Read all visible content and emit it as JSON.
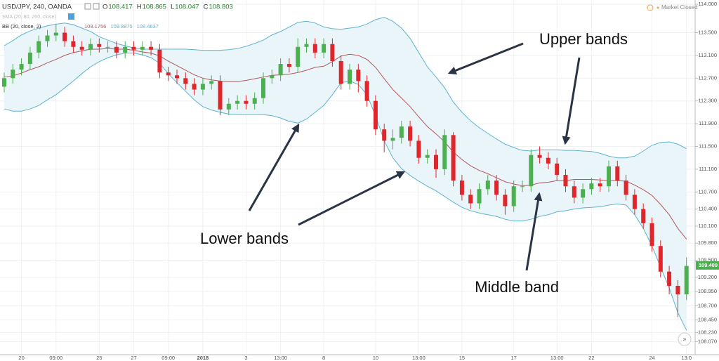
{
  "chart_data": {
    "type": "candlestick",
    "title": "USD/JPY, 240, OANDA",
    "ohlc_legend": [
      {
        "label": "O",
        "value": 108.417
      },
      {
        "label": "H",
        "value": 108.865
      },
      {
        "label": "L",
        "value": 108.047
      },
      {
        "label": "C",
        "value": 108.803
      }
    ],
    "indicators": [
      {
        "name": "SMA (20, 80, 200, close)"
      },
      {
        "name": "BB (20, close, 2)",
        "values": [
          109.1756,
          109.8875,
          108.4637
        ]
      }
    ],
    "status": "Market Closed",
    "last_price": 109.409,
    "annotations": [
      "Upper bands",
      "Lower bands",
      "Middle band"
    ],
    "categories": [
      null,
      null,
      "20",
      null,
      null,
      null,
      "09:00",
      null,
      null,
      null,
      null,
      "25",
      null,
      null,
      null,
      "27",
      null,
      null,
      null,
      "09:00",
      null,
      null,
      null,
      "2018",
      null,
      null,
      null,
      null,
      "3",
      null,
      null,
      null,
      "13:00",
      null,
      null,
      null,
      null,
      "8",
      null,
      null,
      null,
      null,
      null,
      "10",
      null,
      null,
      null,
      null,
      "13:00",
      null,
      null,
      null,
      null,
      "15",
      null,
      null,
      null,
      null,
      null,
      "17",
      null,
      null,
      null,
      null,
      "13:00",
      null,
      null,
      null,
      "22",
      null,
      null,
      null,
      null,
      null,
      null,
      "24",
      null,
      null,
      null,
      "13:0"
    ],
    "open": [
      112.55,
      112.7,
      112.85,
      112.95,
      113.15,
      113.35,
      113.45,
      113.5,
      113.35,
      113.25,
      113.2,
      113.3,
      113.25,
      113.25,
      113.15,
      113.25,
      113.2,
      113.25,
      113.2,
      112.8,
      112.75,
      112.7,
      112.6,
      112.5,
      112.6,
      112.65,
      112.15,
      112.25,
      112.3,
      112.25,
      112.35,
      112.7,
      112.75,
      112.95,
      112.9,
      113.25,
      113.3,
      113.15,
      113.3,
      113.0,
      112.6,
      112.85,
      112.65,
      112.3,
      111.8,
      111.6,
      111.65,
      111.85,
      111.6,
      111.3,
      111.35,
      111.1,
      111.7,
      110.9,
      110.65,
      110.5,
      110.75,
      110.9,
      110.65,
      110.45,
      110.8,
      110.8,
      111.35,
      111.3,
      111.2,
      111.0,
      110.8,
      110.6,
      110.75,
      110.85,
      110.8,
      111.15,
      110.9,
      110.65,
      110.4,
      110.15,
      109.75,
      109.3,
      109.05,
      108.9
    ],
    "high": [
      112.8,
      112.95,
      113.05,
      113.25,
      113.45,
      113.55,
      113.65,
      113.6,
      113.45,
      113.35,
      113.4,
      113.4,
      113.35,
      113.35,
      113.35,
      113.35,
      113.35,
      113.35,
      113.3,
      112.9,
      112.85,
      112.8,
      112.7,
      112.7,
      112.75,
      112.75,
      112.35,
      112.4,
      112.4,
      112.45,
      112.8,
      112.85,
      113.05,
      113.05,
      113.4,
      113.4,
      113.4,
      113.4,
      113.4,
      113.1,
      112.95,
      112.95,
      112.75,
      112.4,
      111.9,
      111.8,
      111.95,
      111.95,
      111.7,
      111.45,
      111.45,
      111.8,
      111.75,
      111.0,
      110.75,
      110.85,
      111.0,
      111.0,
      110.75,
      110.9,
      110.9,
      111.45,
      111.5,
      111.4,
      111.3,
      111.1,
      110.9,
      110.85,
      110.95,
      110.95,
      111.25,
      111.25,
      111.0,
      110.75,
      110.5,
      110.25,
      109.85,
      109.4,
      109.15,
      109.55
    ],
    "low": [
      112.45,
      112.6,
      112.75,
      112.85,
      113.05,
      113.25,
      113.35,
      113.25,
      113.15,
      113.1,
      113.1,
      113.15,
      113.15,
      113.05,
      113.05,
      113.1,
      113.1,
      113.1,
      112.7,
      112.65,
      112.6,
      112.5,
      112.4,
      112.4,
      112.5,
      112.05,
      112.05,
      112.15,
      112.15,
      112.15,
      112.25,
      112.6,
      112.65,
      112.8,
      112.8,
      113.15,
      113.05,
      113.05,
      112.9,
      112.5,
      112.5,
      112.45,
      112.2,
      111.7,
      111.4,
      111.45,
      111.55,
      111.5,
      111.2,
      111.2,
      110.95,
      111.0,
      110.8,
      110.55,
      110.4,
      110.4,
      110.65,
      110.55,
      110.3,
      110.35,
      110.7,
      110.7,
      111.2,
      111.1,
      110.9,
      110.7,
      110.5,
      110.5,
      110.65,
      110.7,
      110.7,
      110.8,
      110.55,
      110.3,
      110.05,
      109.65,
      109.2,
      108.9,
      108.5,
      108.8
    ],
    "close": [
      112.7,
      112.85,
      112.95,
      113.15,
      113.35,
      113.45,
      113.5,
      113.35,
      113.25,
      113.2,
      113.3,
      113.25,
      113.25,
      113.15,
      113.25,
      113.2,
      113.25,
      113.2,
      112.8,
      112.75,
      112.7,
      112.6,
      112.5,
      112.6,
      112.65,
      112.15,
      112.25,
      112.3,
      112.25,
      112.35,
      112.7,
      112.75,
      112.95,
      112.9,
      113.25,
      113.3,
      113.15,
      113.3,
      113.0,
      112.6,
      112.85,
      112.65,
      112.3,
      111.8,
      111.6,
      111.65,
      111.85,
      111.6,
      111.3,
      111.35,
      111.1,
      111.7,
      110.9,
      110.65,
      110.5,
      110.75,
      110.9,
      110.65,
      110.45,
      110.8,
      110.8,
      111.35,
      111.3,
      111.2,
      111.0,
      110.8,
      110.6,
      110.75,
      110.85,
      110.8,
      111.15,
      110.9,
      110.65,
      110.4,
      110.15,
      109.75,
      109.3,
      109.05,
      108.9,
      109.4
    ],
    "upper": [
      113.27,
      113.36,
      113.46,
      113.53,
      113.58,
      113.62,
      113.65,
      113.67,
      113.64,
      113.58,
      113.52,
      113.43,
      113.37,
      113.31,
      113.27,
      113.23,
      113.21,
      113.21,
      113.21,
      113.21,
      113.21,
      113.21,
      113.2,
      113.19,
      113.19,
      113.19,
      113.2,
      113.22,
      113.26,
      113.31,
      113.37,
      113.46,
      113.52,
      113.6,
      113.68,
      113.7,
      113.67,
      113.6,
      113.57,
      113.56,
      113.58,
      113.6,
      113.65,
      113.73,
      113.77,
      113.7,
      113.58,
      113.4,
      113.15,
      112.9,
      112.72,
      112.53,
      112.28,
      112.1,
      111.95,
      111.83,
      111.73,
      111.63,
      111.54,
      111.48,
      111.43,
      111.42,
      111.44,
      111.44,
      111.44,
      111.43,
      111.43,
      111.42,
      111.41,
      111.38,
      111.33,
      111.3,
      111.3,
      111.33,
      111.42,
      111.52,
      111.57,
      111.58,
      111.54,
      111.46
    ],
    "middle": [
      112.72,
      112.74,
      112.79,
      112.85,
      112.9,
      112.97,
      113.03,
      113.1,
      113.15,
      113.18,
      113.21,
      113.21,
      113.22,
      113.21,
      113.21,
      113.19,
      113.16,
      113.14,
      113.09,
      113.0,
      112.92,
      112.84,
      112.76,
      112.7,
      112.67,
      112.65,
      112.64,
      112.64,
      112.66,
      112.69,
      112.72,
      112.75,
      112.76,
      112.77,
      112.8,
      112.84,
      112.89,
      112.91,
      112.99,
      113.09,
      113.12,
      113.1,
      113.03,
      112.89,
      112.69,
      112.5,
      112.35,
      112.2,
      112.02,
      111.85,
      111.72,
      111.58,
      111.4,
      111.27,
      111.16,
      111.08,
      111.02,
      110.95,
      110.88,
      110.84,
      110.81,
      110.82,
      110.86,
      110.87,
      110.9,
      110.9,
      110.92,
      110.92,
      110.92,
      110.91,
      110.9,
      110.9,
      110.89,
      110.82,
      110.74,
      110.64,
      110.48,
      110.3,
      110.06,
      109.87
    ],
    "lower": [
      112.16,
      112.12,
      112.12,
      112.16,
      112.22,
      112.32,
      112.41,
      112.53,
      112.65,
      112.78,
      112.9,
      112.99,
      113.06,
      113.11,
      113.14,
      113.14,
      113.11,
      113.06,
      112.96,
      112.78,
      112.62,
      112.47,
      112.32,
      112.2,
      112.14,
      112.1,
      112.07,
      112.06,
      112.06,
      112.06,
      112.06,
      112.04,
      112.0,
      111.94,
      111.91,
      111.98,
      112.1,
      112.22,
      112.41,
      112.62,
      112.65,
      112.59,
      112.41,
      112.04,
      111.6,
      111.3,
      111.11,
      110.99,
      110.89,
      110.8,
      110.72,
      110.62,
      110.52,
      110.43,
      110.37,
      110.33,
      110.3,
      110.27,
      110.22,
      110.19,
      110.19,
      110.22,
      110.27,
      110.3,
      110.35,
      110.37,
      110.4,
      110.42,
      110.43,
      110.44,
      110.47,
      110.49,
      110.47,
      110.3,
      110.06,
      109.75,
      109.38,
      109.01,
      108.58,
      108.27
    ],
    "ylim": [
      107.84,
      114.074
    ],
    "yticks": [
      {
        "value": 114.0,
        "label": "114.000"
      },
      {
        "value": 113.5,
        "label": "113.500"
      },
      {
        "value": 113.1,
        "label": "113.100"
      },
      {
        "value": 112.7,
        "label": "112.700"
      },
      {
        "value": 112.3,
        "label": "112.300"
      },
      {
        "value": 111.9,
        "label": "111.900"
      },
      {
        "value": 111.5,
        "label": "111.500"
      },
      {
        "value": 111.1,
        "label": "111.100"
      },
      {
        "value": 110.7,
        "label": "110.700"
      },
      {
        "value": 110.4,
        "label": "110.400"
      },
      {
        "value": 110.1,
        "label": "110.100"
      },
      {
        "value": 109.8,
        "label": "109.800"
      },
      {
        "value": 109.5,
        "label": "109.500"
      },
      {
        "value": 109.2,
        "label": "109.200"
      },
      {
        "value": 108.95,
        "label": "108.950"
      },
      {
        "value": 108.7,
        "label": "108.700"
      },
      {
        "value": 108.45,
        "label": "108.450"
      },
      {
        "value": 108.23,
        "label": "108.230"
      },
      {
        "value": 108.07,
        "label": "108.070"
      }
    ],
    "grid": true,
    "colors": {
      "up": "#4caf50",
      "down": "#e0262d",
      "band": "#5fb3cf",
      "middle": "#b3575c",
      "fill": "#e9f5f8"
    }
  }
}
